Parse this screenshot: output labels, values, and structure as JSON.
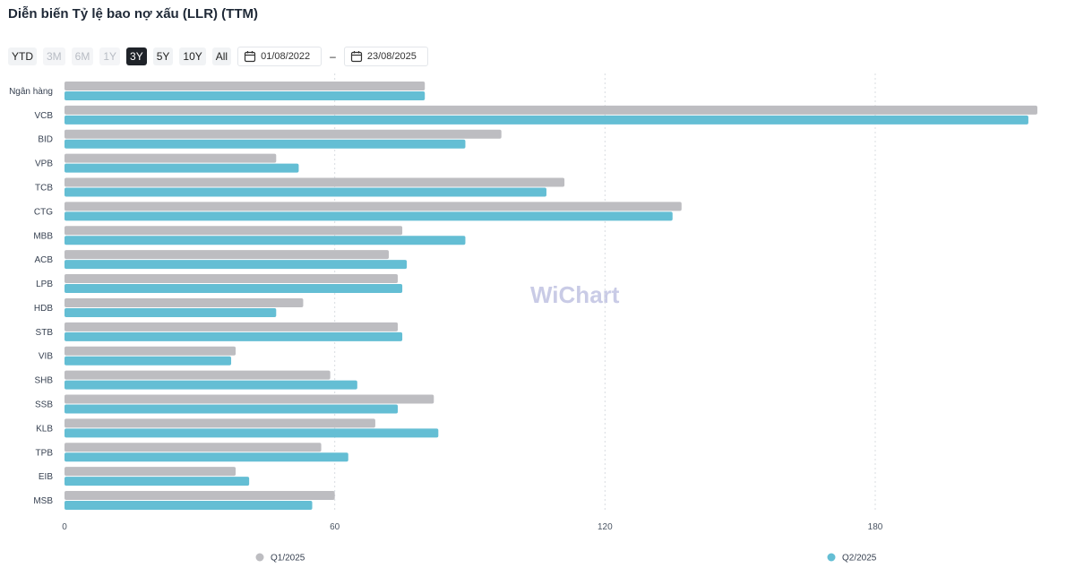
{
  "title": "Diễn biến Tỷ lệ bao nợ xấu (LLR) (TTM)",
  "range_buttons": [
    {
      "label": "YTD",
      "state": "normal"
    },
    {
      "label": "3M",
      "state": "disabled"
    },
    {
      "label": "6M",
      "state": "disabled"
    },
    {
      "label": "1Y",
      "state": "disabled"
    },
    {
      "label": "3Y",
      "state": "active"
    },
    {
      "label": "5Y",
      "state": "normal"
    },
    {
      "label": "10Y",
      "state": "normal"
    },
    {
      "label": "All",
      "state": "normal"
    }
  ],
  "date_from": "01/08/2022",
  "date_separator": "–",
  "date_to": "23/08/2025",
  "watermark": "WiChart",
  "colors": {
    "q1": "#bdbdc1",
    "q2": "#64bed4",
    "grid": "#d9dce1",
    "watermark": "#c9cbe6"
  },
  "chart_data": {
    "type": "bar",
    "orientation": "horizontal",
    "categories": [
      "Ngân hàng",
      "VCB",
      "BID",
      "VPB",
      "TCB",
      "CTG",
      "MBB",
      "ACB",
      "LPB",
      "HDB",
      "STB",
      "VIB",
      "SHB",
      "SSB",
      "KLB",
      "TPB",
      "EIB",
      "MSB"
    ],
    "series": [
      {
        "name": "Q1/2025",
        "color": "#bdbdc1",
        "values": [
          80,
          216,
          97,
          47,
          111,
          137,
          75,
          72,
          74,
          53,
          74,
          38,
          59,
          82,
          69,
          57,
          38,
          60
        ]
      },
      {
        "name": "Q2/2025",
        "color": "#64bed4",
        "values": [
          80,
          214,
          89,
          52,
          107,
          135,
          89,
          76,
          75,
          47,
          75,
          37,
          65,
          74,
          83,
          63,
          41,
          55
        ]
      }
    ],
    "xlim": [
      0,
      216
    ],
    "xticks": [
      "0",
      "60",
      "120",
      "180"
    ],
    "grid": true,
    "legend_position": "bottom"
  }
}
